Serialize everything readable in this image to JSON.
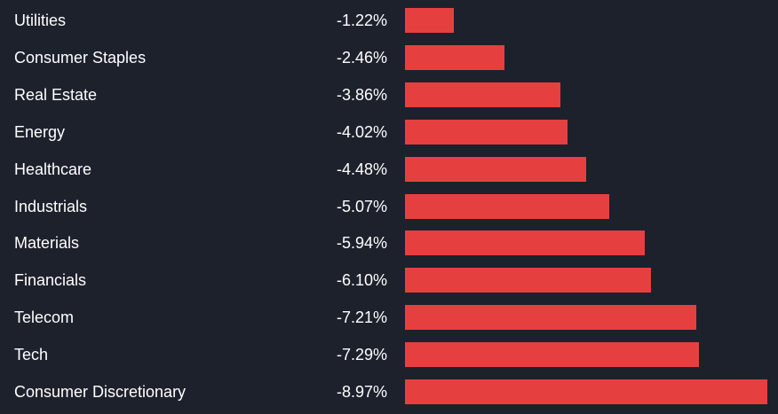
{
  "chart_data": {
    "type": "bar",
    "orientation": "horizontal",
    "categories": [
      "Utilities",
      "Consumer Staples",
      "Real Estate",
      "Energy",
      "Healthcare",
      "Industrials",
      "Materials",
      "Financials",
      "Telecom",
      "Tech",
      "Consumer Discretionary"
    ],
    "values": [
      -1.22,
      -2.46,
      -3.86,
      -4.02,
      -4.48,
      -5.07,
      -5.94,
      -6.1,
      -7.21,
      -7.29,
      -8.97
    ],
    "value_labels": [
      "-1.22%",
      "-2.46%",
      "-3.86%",
      "-4.02%",
      "-4.48%",
      "-5.07%",
      "-5.94%",
      "-6.10%",
      "-7.21%",
      "-7.29%",
      "-8.97%"
    ],
    "unit": "%",
    "grid": false,
    "legend": "none",
    "colors": {
      "background": "#1d212c",
      "bar": "#e5403f",
      "text": "#ffffff"
    }
  }
}
